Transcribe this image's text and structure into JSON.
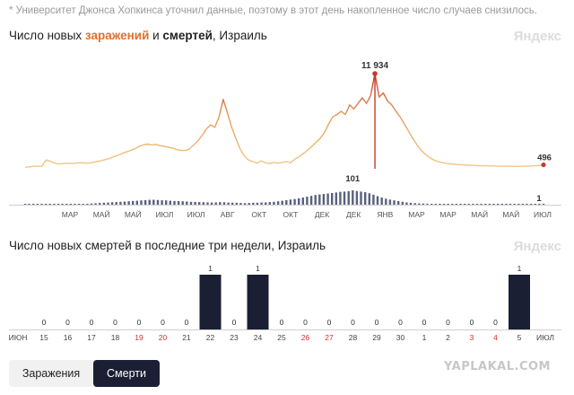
{
  "note": "* Университет Джонса Хопкинса уточнил данные, поэтому в этот день накопленное число случаев снизилось.",
  "brand": "Яндекс",
  "chart_data": [
    {
      "type": "line",
      "title_parts": [
        "Число новых ",
        "заражений",
        " и ",
        "смертей",
        ", Израиль"
      ],
      "x_tick_labels": [
        "МАР",
        "МАЙ",
        "МАЙ",
        "ИЮЛ",
        "ИЮЛ",
        "АВГ",
        "ОКТ",
        "ОКТ",
        "ДЕК",
        "ДЕК",
        "ЯНВ",
        "МАР",
        "МАР",
        "МАЙ",
        "МАЙ",
        "ИЮЛ"
      ],
      "series": [
        {
          "name": "заражений",
          "peak_label": "11 934",
          "last_label": "496",
          "values": [
            200,
            250,
            300,
            310,
            320,
            1100,
            950,
            700,
            600,
            650,
            700,
            680,
            700,
            760,
            720,
            700,
            800,
            900,
            1000,
            1150,
            1300,
            1500,
            1700,
            1900,
            2100,
            2300,
            2500,
            2800,
            3000,
            3100,
            3000,
            3050,
            2900,
            2800,
            2700,
            2600,
            2400,
            2300,
            2300,
            2500,
            3000,
            3500,
            4200,
            5000,
            5500,
            5200,
            6500,
            8700,
            7000,
            5200,
            3800,
            2500,
            1600,
            1100,
            900,
            700,
            1000,
            750,
            650,
            800,
            700,
            800,
            900,
            750,
            1200,
            1500,
            1900,
            2300,
            2800,
            3300,
            3800,
            4500,
            5600,
            6500,
            6800,
            7200,
            6800,
            8000,
            7500,
            8200,
            8900,
            8200,
            9200,
            11934,
            9000,
            9500,
            8500,
            8000,
            7200,
            6500,
            5600,
            4700,
            3800,
            3000,
            2300,
            1800,
            1400,
            1100,
            900,
            780,
            650,
            620,
            560,
            520,
            480,
            450,
            430,
            410,
            390,
            370,
            360,
            350,
            340,
            330,
            320,
            310,
            300,
            300,
            310,
            330,
            350,
            380,
            420,
            496
          ]
        },
        {
          "name": "смертей",
          "peak_label": "101",
          "last_label": "1",
          "values": [
            0,
            0,
            0,
            1,
            1,
            2,
            2,
            3,
            3,
            4,
            5,
            3,
            3,
            4,
            5,
            6,
            8,
            10,
            12,
            14,
            15,
            17,
            18,
            20,
            22,
            24,
            26,
            28,
            30,
            32,
            34,
            35,
            33,
            31,
            30,
            28,
            26,
            25,
            24,
            22,
            20,
            19,
            18,
            17,
            16,
            15,
            16,
            18,
            17,
            15,
            14,
            13,
            12,
            11,
            12,
            13,
            14,
            15,
            16,
            18,
            20,
            24,
            28,
            32,
            36,
            40,
            45,
            50,
            56,
            62,
            68,
            72,
            75,
            78,
            82,
            86,
            90,
            92,
            95,
            101,
            96,
            92,
            88,
            80,
            70,
            60,
            50,
            42,
            36,
            30,
            25,
            20,
            16,
            13,
            11,
            9,
            8,
            7,
            6,
            5,
            4,
            4,
            3,
            3,
            3,
            2,
            2,
            2,
            2,
            2,
            1,
            1,
            1,
            1,
            1,
            1,
            1,
            1,
            1,
            1,
            1,
            1,
            1,
            1,
            1,
            1
          ]
        }
      ]
    },
    {
      "type": "bar",
      "title": "Число новых смертей в последние три недели, Израиль",
      "categories": [
        "15",
        "16",
        "17",
        "18",
        "19",
        "20",
        "21",
        "22",
        "23",
        "24",
        "25",
        "26",
        "27",
        "28",
        "29",
        "30",
        "1",
        "2",
        "3",
        "4",
        "5"
      ],
      "red_categories": [
        "19",
        "20",
        "26",
        "27",
        "3",
        "4"
      ],
      "values": [
        0,
        0,
        0,
        0,
        0,
        0,
        0,
        1,
        0,
        1,
        0,
        0,
        0,
        0,
        0,
        0,
        0,
        0,
        0,
        0,
        1
      ],
      "x_edge_labels": [
        "ИЮН",
        "ИЮЛ"
      ],
      "ylim": [
        0,
        1
      ]
    }
  ],
  "tabs": [
    {
      "label": "Заражения",
      "active": false
    },
    {
      "label": "Смерти",
      "active": true
    }
  ],
  "watermark": "YAPLAKAL.COM"
}
